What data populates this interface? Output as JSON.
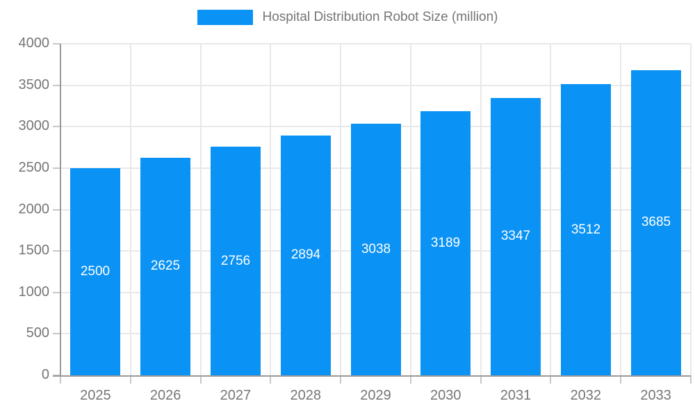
{
  "legend": {
    "label": "Hospital Distribution Robot Size (million)"
  },
  "chart_data": {
    "type": "bar",
    "title": "Hospital Distribution Robot Size (million)",
    "categories": [
      "2025",
      "2026",
      "2027",
      "2028",
      "2029",
      "2030",
      "2031",
      "2032",
      "2033"
    ],
    "values": [
      2500,
      2625,
      2756,
      2894,
      3038,
      3189,
      3347,
      3512,
      3685
    ],
    "xlabel": "",
    "ylabel": "",
    "ylim": [
      0,
      4000
    ],
    "ytick_step": 500,
    "grid": true,
    "legend_position": "top-center",
    "bar_color": "#0a92f5",
    "value_label_color": "#ffffff",
    "axis_text_color": "#757575",
    "grid_color": "#e8e8e8",
    "axis_line_color": "#999999",
    "tick_color": "#c8c8c8",
    "background_color": "#ffffff"
  }
}
